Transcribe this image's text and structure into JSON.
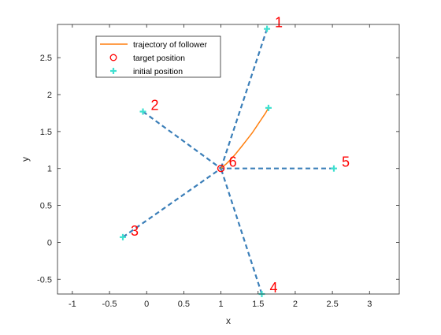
{
  "chart_data": {
    "type": "line",
    "title": "",
    "xlabel": "x",
    "ylabel": "y",
    "xlim": [
      -1.2,
      3.4
    ],
    "ylim": [
      -0.7,
      2.95
    ],
    "xticks": [
      -1,
      -0.5,
      0,
      0.5,
      1,
      1.5,
      2,
      2.5,
      3
    ],
    "xtick_labels": [
      "-1",
      "-0.5",
      "0",
      "0.5",
      "1",
      "1.5",
      "2",
      "2.5",
      "3"
    ],
    "yticks": [
      -0.5,
      0,
      0.5,
      1,
      1.5,
      2,
      2.5
    ],
    "ytick_labels": [
      "-0.5",
      "0",
      "0.5",
      "1",
      "1.5",
      "2",
      "2.5"
    ],
    "grid": false,
    "legend_position": "top-left",
    "legend": [
      {
        "label": "trajectory of follower",
        "marker": "line",
        "color": "#ff7f0e"
      },
      {
        "label": "target position",
        "marker": "circle",
        "color": "#ff0000"
      },
      {
        "label": "initial position",
        "marker": "plus",
        "color": "#40e0d0"
      }
    ],
    "nodes": [
      {
        "label": "1",
        "x": 1.62,
        "y": 2.89
      },
      {
        "label": "2",
        "x": -0.05,
        "y": 1.77
      },
      {
        "label": "3",
        "x": -0.32,
        "y": 0.07
      },
      {
        "label": "4",
        "x": 1.55,
        "y": -0.7
      },
      {
        "label": "5",
        "x": 2.52,
        "y": 1.0
      },
      {
        "label": "6",
        "x": 1.0,
        "y": 1.0
      }
    ],
    "edges": [
      [
        "1",
        "6"
      ],
      [
        "2",
        "6"
      ],
      [
        "3",
        "6"
      ],
      [
        "4",
        "6"
      ],
      [
        "5",
        "6"
      ]
    ],
    "initial_positions": [
      {
        "x": 1.62,
        "y": 2.89
      },
      {
        "x": -0.05,
        "y": 1.77
      },
      {
        "x": -0.32,
        "y": 0.07
      },
      {
        "x": 1.55,
        "y": -0.7
      },
      {
        "x": 2.52,
        "y": 1.0
      },
      {
        "x": 1.64,
        "y": 1.82
      }
    ],
    "target_position": {
      "x": 1.0,
      "y": 1.0
    },
    "trajectory": {
      "x": [
        1.64,
        1.6,
        1.54,
        1.48,
        1.42,
        1.35,
        1.28,
        1.2,
        1.13,
        1.07,
        1.02,
        1.0
      ],
      "y": [
        1.82,
        1.75,
        1.66,
        1.57,
        1.48,
        1.39,
        1.3,
        1.2,
        1.12,
        1.06,
        1.02,
        1.0
      ]
    },
    "colors": {
      "edge": "#3a7eb8",
      "trajectory": "#ff7f0e",
      "target": "#ff0000",
      "initial": "#40e0d0",
      "node_label": "#ff0000"
    }
  }
}
